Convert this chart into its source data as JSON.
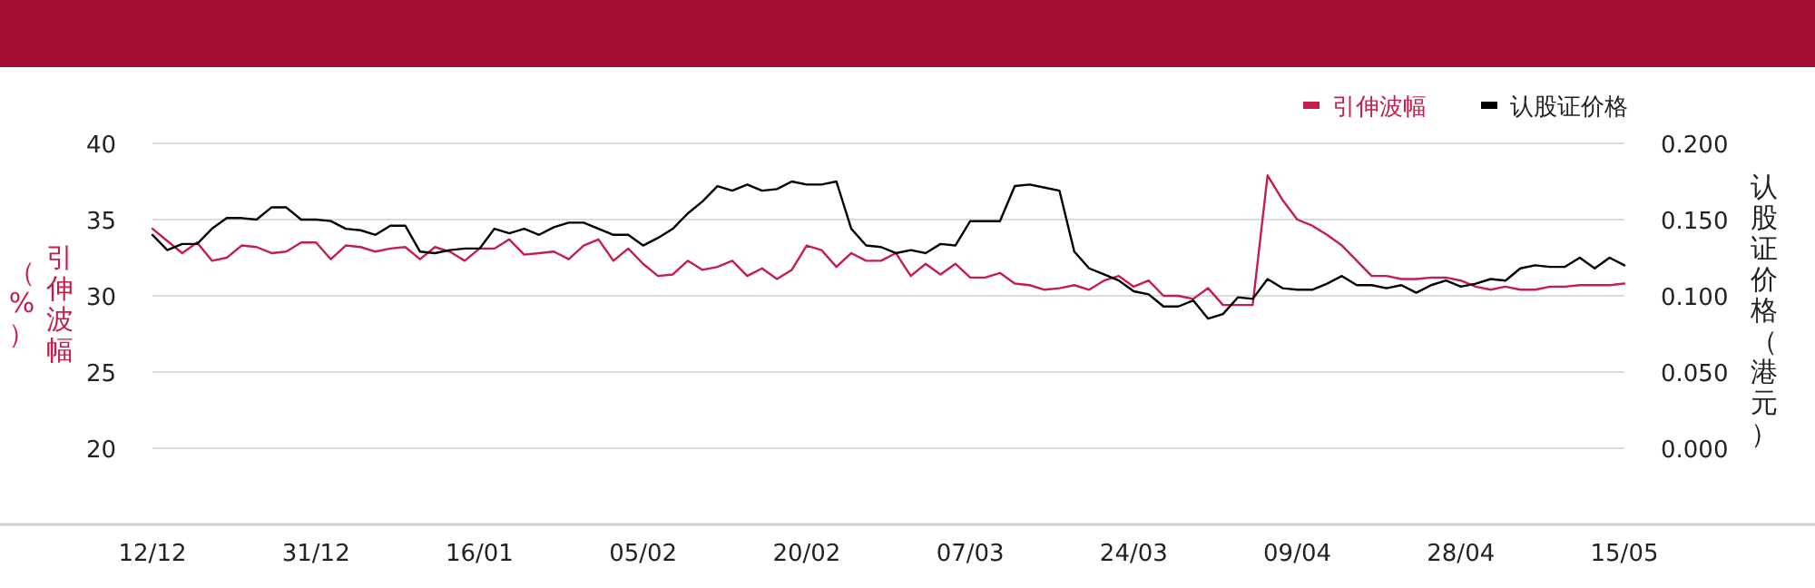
{
  "chart_data": {
    "type": "line",
    "ylabel": "引伸波幅（%）",
    "y2label": "认股证价格（港元）",
    "categories": [
      "12/12",
      null,
      null,
      null,
      null,
      null,
      null,
      null,
      null,
      null,
      null,
      "31/12",
      null,
      null,
      null,
      null,
      null,
      null,
      null,
      null,
      null,
      null,
      "16/01",
      null,
      null,
      null,
      null,
      null,
      null,
      null,
      null,
      null,
      null,
      "05/02",
      null,
      null,
      null,
      null,
      null,
      null,
      null,
      null,
      null,
      null,
      "20/02",
      null,
      null,
      null,
      null,
      null,
      null,
      null,
      null,
      null,
      null,
      "07/03",
      null,
      null,
      null,
      null,
      null,
      null,
      null,
      null,
      null,
      null,
      "24/03",
      null,
      null,
      null,
      null,
      null,
      null,
      null,
      null,
      null,
      null,
      "09/04",
      null,
      null,
      null,
      null,
      null,
      null,
      null,
      null,
      null,
      null,
      "28/04",
      null,
      null,
      null,
      null,
      null,
      null,
      null,
      null,
      null,
      null,
      "15/05"
    ],
    "series": [
      {
        "name": "引伸波幅",
        "color": "#c41e4a",
        "values": [
          34.4,
          33.6,
          32.8,
          33.5,
          32.3,
          32.5,
          33.3,
          33.2,
          32.8,
          32.9,
          33.5,
          33.5,
          32.4,
          33.3,
          33.2,
          32.9,
          33.1,
          33.2,
          32.4,
          33.2,
          32.9,
          32.3,
          33.1,
          33.1,
          33.7,
          32.7,
          32.8,
          32.9,
          32.4,
          33.3,
          33.7,
          32.3,
          33.1,
          32.1,
          31.3,
          31.4,
          32.3,
          31.7,
          31.9,
          32.3,
          31.3,
          31.8,
          31.1,
          31.7,
          33.3,
          33.0,
          31.9,
          32.8,
          32.3,
          32.3,
          32.8,
          31.3,
          32.1,
          31.4,
          32.1,
          31.2,
          31.2,
          31.5,
          30.8,
          30.7,
          30.4,
          30.5,
          30.7,
          30.4,
          31.0,
          31.3,
          30.6,
          31.0,
          30.0,
          30.0,
          29.8,
          30.5,
          29.4,
          29.4,
          29.4,
          37.9,
          36.3,
          35.0,
          34.6,
          34.0,
          33.3,
          32.3,
          31.3,
          31.3,
          31.1,
          31.1,
          31.2,
          31.2,
          31.0,
          30.6,
          30.4,
          30.6,
          30.4,
          30.4,
          30.6,
          30.6,
          30.7,
          30.7,
          30.7,
          30.8
        ]
      },
      {
        "name": "认股证价格",
        "color": "#000000",
        "axis": "y2",
        "values": [
          0.14,
          0.13,
          0.134,
          0.134,
          0.144,
          0.151,
          0.151,
          0.15,
          0.158,
          0.158,
          0.15,
          0.15,
          0.149,
          0.144,
          0.143,
          0.14,
          0.146,
          0.146,
          0.129,
          0.128,
          0.13,
          0.131,
          0.131,
          0.144,
          0.141,
          0.144,
          0.14,
          0.145,
          0.148,
          0.148,
          0.144,
          0.14,
          0.14,
          0.133,
          0.138,
          0.144,
          0.154,
          0.162,
          0.172,
          0.169,
          0.173,
          0.169,
          0.17,
          0.175,
          0.173,
          0.173,
          0.175,
          0.144,
          0.133,
          0.132,
          0.128,
          0.13,
          0.128,
          0.134,
          0.133,
          0.149,
          0.149,
          0.149,
          0.172,
          0.173,
          0.171,
          0.169,
          0.129,
          0.118,
          0.114,
          0.11,
          0.103,
          0.101,
          0.093,
          0.093,
          0.097,
          0.085,
          0.088,
          0.099,
          0.098,
          0.111,
          0.105,
          0.104,
          0.104,
          0.108,
          0.113,
          0.107,
          0.107,
          0.105,
          0.107,
          0.102,
          0.107,
          0.11,
          0.106,
          0.108,
          0.111,
          0.11,
          0.118,
          0.12,
          0.119,
          0.119,
          0.125,
          0.118,
          0.125,
          0.12
        ]
      }
    ],
    "ylim": [
      15,
      40
    ],
    "yticks": [
      20,
      25,
      30,
      35,
      40
    ],
    "y2lim": [
      -0.05,
      0.2
    ],
    "y2ticks": [
      {
        "value": 0,
        "label": "0.000"
      },
      {
        "value": 0.05,
        "label": "0.050"
      },
      {
        "value": 0.1,
        "label": "0.100"
      },
      {
        "value": 0.15,
        "label": "0.150"
      },
      {
        "value": 0.2,
        "label": "0.200"
      }
    ],
    "grid": "y",
    "legend": "top right",
    "marker": "none",
    "line_style": "solid"
  }
}
